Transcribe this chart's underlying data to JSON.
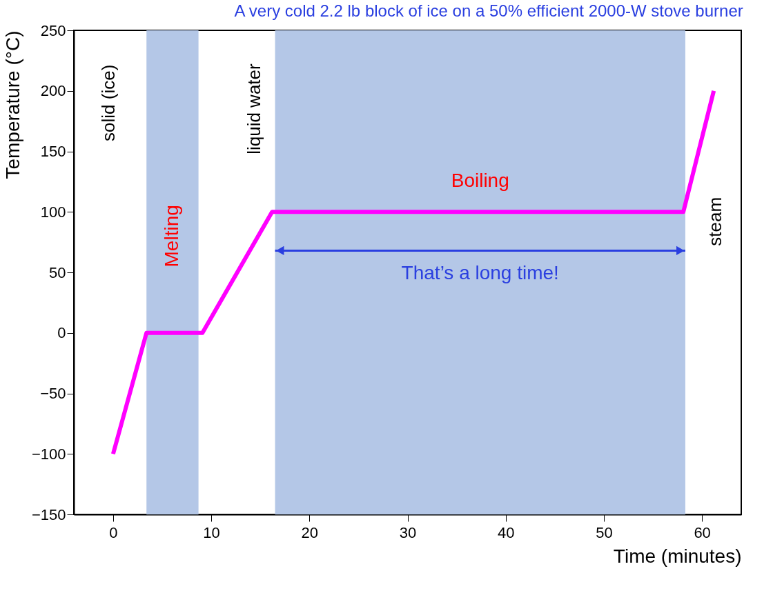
{
  "chart_data": {
    "type": "line",
    "title": "A very cold 2.2 lb block of ice on a 50% efficient 2000-W stove burner",
    "xlabel": "Time (minutes)",
    "ylabel": "Temperature (°C)",
    "x": [
      0,
      3.4,
      9.1,
      16.2,
      58.1,
      61.2
    ],
    "series": [
      {
        "color": "#ff00ff",
        "values": [
          -100,
          0,
          0,
          100,
          100,
          200
        ]
      }
    ],
    "xlim": [
      -4,
      64
    ],
    "ylim": [
      -150,
      250
    ],
    "xticks": [
      0,
      10,
      20,
      30,
      40,
      50,
      60
    ],
    "yticks": [
      -150,
      -100,
      -50,
      0,
      50,
      100,
      150,
      200,
      250
    ],
    "bands": [
      {
        "axis": "x",
        "from": 3.4,
        "to": 8.7,
        "label": "Melting",
        "color": "#b4c7e7"
      },
      {
        "axis": "x",
        "from": 16.5,
        "to": 58.3,
        "label": "Boiling",
        "color": "#b4c7e7"
      }
    ],
    "annotations": [
      "solid (ice)",
      "liquid water",
      "That’s a long time!",
      "steam"
    ],
    "grid": false,
    "marker": "none",
    "line_style": "solid"
  }
}
